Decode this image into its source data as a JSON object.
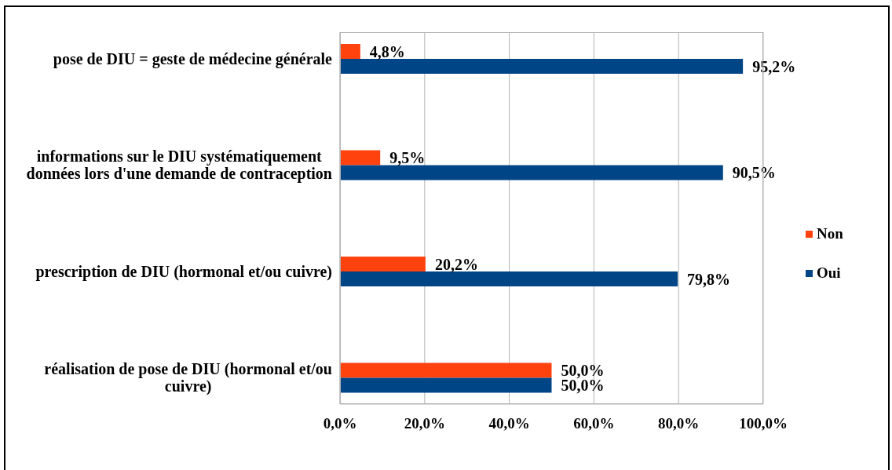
{
  "chart_data": {
    "type": "bar",
    "orientation": "horizontal",
    "categories": [
      "pose de DIU = geste de médecine générale",
      "informations sur le DIU systématiquement données lors d'une demande de contraception",
      "prescription de DIU (hormonal et/ou cuivre)",
      "réalisation de pose de DIU (hormonal et/ou cuivre)"
    ],
    "series": [
      {
        "name": "Non",
        "color": "#ff420e",
        "values": [
          4.8,
          9.5,
          20.2,
          50.0
        ],
        "value_labels": [
          "4,8%",
          "9,5%",
          "20,2%",
          "50,0%"
        ]
      },
      {
        "name": "Oui",
        "color": "#004586",
        "values": [
          95.2,
          90.5,
          79.8,
          50.0
        ],
        "value_labels": [
          "95,2%",
          "90,5%",
          "79,8%",
          "50,0%"
        ]
      }
    ],
    "xlim": [
      0,
      100
    ],
    "xticks": [
      {
        "value": 0,
        "label": "0,0%"
      },
      {
        "value": 20,
        "label": "20,0%"
      },
      {
        "value": 40,
        "label": "40,0%"
      },
      {
        "value": 60,
        "label": "60,0%"
      },
      {
        "value": 80,
        "label": "80,0%"
      },
      {
        "value": 100,
        "label": "100,0%"
      }
    ],
    "grid": "x",
    "legend": "right"
  }
}
